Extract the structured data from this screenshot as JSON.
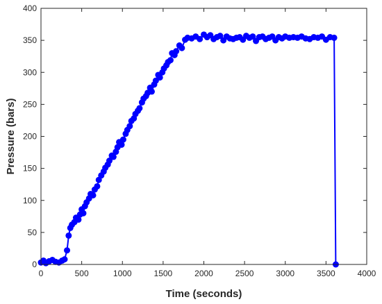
{
  "chart_data": {
    "type": "line",
    "title": "",
    "xlabel": "Time (seconds)",
    "ylabel": "Pressure (bars)",
    "xlim": [
      0,
      4000
    ],
    "ylim": [
      0,
      400
    ],
    "xticks": [
      0,
      500,
      1000,
      1500,
      2000,
      2500,
      3000,
      3500,
      4000
    ],
    "yticks": [
      0,
      50,
      100,
      150,
      200,
      250,
      300,
      350,
      400
    ],
    "grid": false,
    "legend": "none",
    "marker": "filled-circle",
    "colors": {
      "series": "#0000ff",
      "axes": "#262626"
    },
    "series": [
      {
        "x": [
          0,
          30,
          60,
          100,
          140,
          180,
          220,
          260,
          290,
          320,
          340,
          360,
          380,
          410,
          430,
          460,
          480,
          500,
          520,
          540,
          560,
          590,
          610,
          640,
          660,
          690,
          710,
          740,
          770,
          790,
          820,
          840,
          870,
          890,
          920,
          940,
          960,
          990,
          1010,
          1040,
          1060,
          1090,
          1110,
          1140,
          1160,
          1190,
          1210,
          1240,
          1260,
          1290,
          1310,
          1340,
          1360,
          1390,
          1410,
          1440,
          1460,
          1490,
          1510,
          1540,
          1560,
          1590,
          1610,
          1640,
          1660,
          1700,
          1730,
          1770,
          1800,
          1850,
          1900,
          1950,
          2000,
          2040,
          2080,
          2120,
          2160,
          2200,
          2240,
          2280,
          2320,
          2360,
          2400,
          2440,
          2480,
          2520,
          2560,
          2600,
          2640,
          2680,
          2720,
          2760,
          2800,
          2840,
          2880,
          2920,
          2960,
          3000,
          3050,
          3100,
          3150,
          3200,
          3250,
          3300,
          3350,
          3400,
          3450,
          3500,
          3550,
          3600,
          3620
        ],
        "y": [
          3,
          6,
          2,
          5,
          7,
          4,
          3,
          6,
          8,
          22,
          45,
          57,
          62,
          66,
          73,
          70,
          78,
          86,
          80,
          91,
          97,
          103,
          110,
          108,
          117,
          122,
          132,
          139,
          145,
          151,
          156,
          162,
          170,
          168,
          176,
          183,
          191,
          187,
          195,
          204,
          210,
          216,
          224,
          228,
          235,
          240,
          244,
          253,
          259,
          263,
          268,
          276,
          270,
          281,
          287,
          296,
          292,
          300,
          306,
          311,
          316,
          319,
          330,
          327,
          333,
          342,
          338,
          351,
          354,
          353,
          356,
          352,
          359,
          355,
          358,
          352,
          355,
          357,
          350,
          356,
          353,
          352,
          354,
          355,
          351,
          357,
          354,
          356,
          349,
          355,
          356,
          352,
          354,
          356,
          350,
          355,
          353,
          356,
          354,
          355,
          354,
          356,
          353,
          352,
          355,
          354,
          356,
          351,
          355,
          354,
          0
        ]
      }
    ]
  }
}
